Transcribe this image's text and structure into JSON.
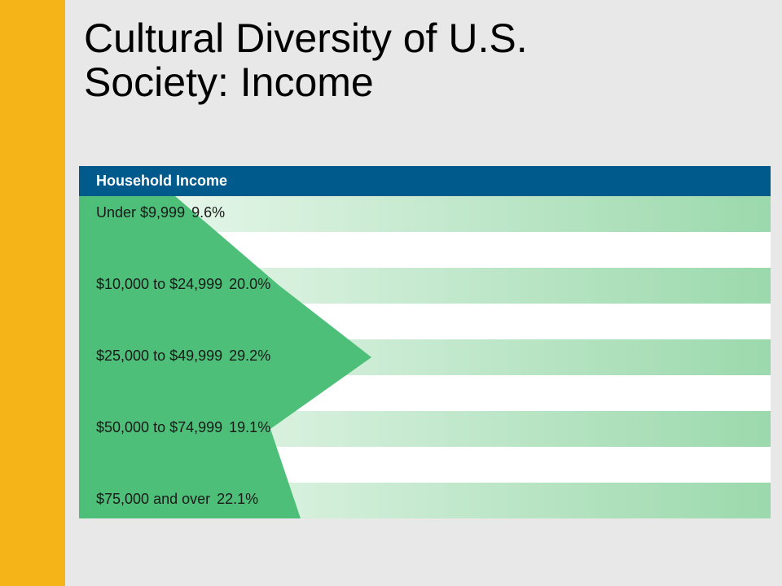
{
  "slide": {
    "title_line1": "Cultural Diversity of U.S.",
    "title_line2": "Society: Income"
  },
  "colors": {
    "accent": "#f5b417",
    "header": "#005a8c",
    "shape": "#4dbf78",
    "stripe_light": "#f0faf2",
    "stripe_dark": "#9bd9ac"
  },
  "chart_data": {
    "type": "area",
    "title": "Household Income",
    "categories": [
      "Under $9,999",
      "$10,000 to $24,999",
      "$25,000 to $49,999",
      "$50,000 to $74,999",
      "$75,000 and over"
    ],
    "values": [
      9.6,
      20.0,
      29.2,
      19.1,
      22.1
    ],
    "value_labels": [
      "9.6%",
      "20.0%",
      "29.2%",
      "19.1%",
      "22.1%"
    ],
    "xlim": [
      0,
      100
    ],
    "legend": "none",
    "grid": false
  }
}
